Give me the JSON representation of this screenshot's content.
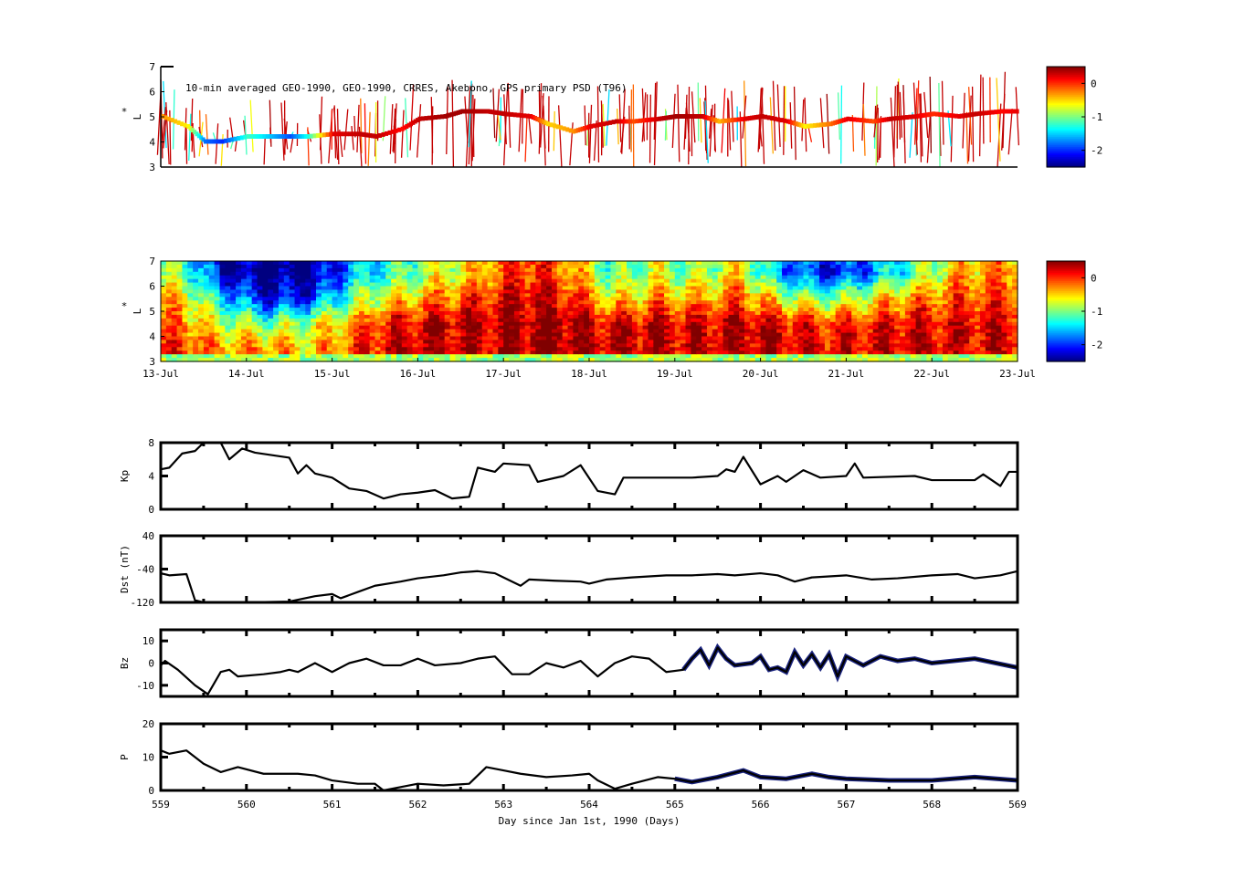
{
  "chart_data": [
    {
      "type": "scatter",
      "panel": "psd-orbit",
      "title": "10-min averaged GEO-1990, GEO-1990, CRRES, Akebono, GPS  primary PSD (T96)",
      "ylabel": "L",
      "ylabel_star": "*",
      "ylim": [
        3,
        7
      ],
      "yticks": [
        "3",
        "4",
        "5",
        "6",
        "7"
      ],
      "colorbar": {
        "range": [
          -2.5,
          0.5
        ],
        "ticks": [
          "0",
          "-1",
          "-2"
        ]
      },
      "track_x_days": [
        0,
        0.3,
        0.5,
        0.7,
        1,
        1.3,
        1.5,
        1.7,
        2,
        2.3,
        2.5,
        2.8,
        3,
        3.3,
        3.5,
        3.8,
        4,
        4.3,
        4.5,
        4.8,
        5,
        5.3,
        5.5,
        5.8,
        6,
        6.3,
        6.5,
        6.8,
        7,
        7.3,
        7.5,
        7.8,
        8,
        8.3,
        8.5,
        8.8,
        9,
        9.3,
        9.5,
        9.8,
        10
      ],
      "track_L": [
        5,
        4.6,
        4,
        4,
        4.2,
        4.2,
        4.2,
        4.2,
        4.3,
        4.3,
        4.2,
        4.5,
        4.9,
        5,
        5.2,
        5.2,
        5.1,
        5,
        4.7,
        4.4,
        4.6,
        4.8,
        4.8,
        4.9,
        5,
        5,
        4.8,
        4.9,
        5,
        4.8,
        4.6,
        4.7,
        4.9,
        4.8,
        4.9,
        5,
        5.1,
        5.0,
        5.1,
        5.2,
        5.2
      ],
      "track_value": [
        -0.3,
        -0.6,
        -1.8,
        -2.0,
        -1.2,
        -1.6,
        -1.9,
        -1.3,
        0.2,
        0.3,
        0.3,
        0.1,
        0.3,
        0.4,
        0.4,
        0.3,
        0.3,
        0.2,
        -0.5,
        -0.3,
        0.2,
        0.3,
        -0.1,
        0.3,
        0.4,
        0.3,
        -0.4,
        0.2,
        0.3,
        0.2,
        -0.6,
        -0.2,
        0.2,
        -0.1,
        0.3,
        0.2,
        0.0,
        0.2,
        0.3,
        0.1,
        0.2
      ]
    },
    {
      "type": "heatmap",
      "panel": "psd-reanalysis",
      "ylabel": "L",
      "ylabel_star": "*",
      "ylim": [
        3,
        7
      ],
      "yticks": [
        "3",
        "4",
        "5",
        "6",
        "7"
      ],
      "xticks": [
        "13-Jul",
        "14-Jul",
        "15-Jul",
        "16-Jul",
        "17-Jul",
        "18-Jul",
        "19-Jul",
        "20-Jul",
        "21-Jul",
        "22-Jul",
        "23-Jul"
      ],
      "colorbar": {
        "range": [
          -2.5,
          0.5
        ],
        "ticks": [
          "0",
          "-1",
          "-2"
        ]
      },
      "L_rows": [
        6.5,
        5.5,
        4.5,
        3.5
      ],
      "values_by_halfday": [
        [
          -1.0,
          -0.5,
          -0.2,
          0.0
        ],
        [
          -2.4,
          -1.5,
          -0.8,
          -0.3
        ],
        [
          -2.5,
          -2.2,
          -1.0,
          -0.3
        ],
        [
          -2.5,
          -2.0,
          -0.8,
          -0.5
        ],
        [
          -1.6,
          -1.0,
          -0.3,
          -0.1
        ],
        [
          -1.2,
          -0.6,
          0.2,
          0.3
        ],
        [
          -0.8,
          -0.2,
          0.3,
          0.3
        ],
        [
          -0.4,
          0.0,
          0.3,
          0.3
        ],
        [
          0.1,
          0.3,
          0.4,
          0.4
        ],
        [
          -0.2,
          0.1,
          0.4,
          0.4
        ],
        [
          -1.2,
          -0.6,
          0.2,
          0.3
        ],
        [
          -0.8,
          -0.3,
          0.3,
          0.3
        ],
        [
          -1.0,
          -0.4,
          0.2,
          0.3
        ],
        [
          -0.6,
          -0.1,
          0.3,
          0.3
        ],
        [
          -1.7,
          -0.7,
          0.2,
          0.3
        ],
        [
          -2.1,
          -1.0,
          0.0,
          0.2
        ],
        [
          -1.8,
          -0.7,
          0.1,
          0.2
        ],
        [
          -1.2,
          -0.3,
          0.2,
          0.2
        ],
        [
          -0.5,
          -0.1,
          0.2,
          0.2
        ],
        [
          -0.3,
          0.0,
          0.2,
          0.2
        ]
      ]
    },
    {
      "type": "line",
      "panel": "kp",
      "ylabel": "Kp",
      "ylim": [
        0,
        8
      ],
      "yticks": [
        "0",
        "4",
        "8"
      ],
      "x": [
        559,
        559.1,
        559.25,
        559.4,
        559.5,
        559.7,
        559.8,
        559.95,
        560.1,
        560.3,
        560.5,
        560.6,
        560.7,
        560.8,
        561,
        561.2,
        561.4,
        561.6,
        561.8,
        562,
        562.2,
        562.4,
        562.6,
        562.7,
        562.9,
        563,
        563.3,
        563.4,
        563.7,
        563.9,
        564.1,
        564.3,
        564.4,
        564.7,
        564.9,
        565.2,
        565.5,
        565.6,
        565.7,
        565.8,
        566,
        566.2,
        566.3,
        566.5,
        566.7,
        567,
        567.1,
        567.2,
        567.8,
        568,
        568.5,
        568.6,
        568.8,
        568.9,
        569
      ],
      "y": [
        4.8,
        5,
        6.7,
        7,
        8,
        8,
        6,
        7.3,
        6.8,
        6.5,
        6.2,
        4.3,
        5.3,
        4.3,
        3.8,
        2.5,
        2.2,
        1.3,
        1.8,
        2,
        2.3,
        1.3,
        1.5,
        5,
        4.5,
        5.5,
        5.3,
        3.3,
        4,
        5.3,
        2.2,
        1.8,
        3.8,
        3.8,
        3.8,
        3.8,
        4,
        4.8,
        4.5,
        6.3,
        3,
        4,
        3.3,
        4.7,
        3.8,
        4,
        5.5,
        3.8,
        4,
        3.5,
        3.5,
        4.2,
        2.8,
        4.5,
        4.5
      ]
    },
    {
      "type": "line",
      "panel": "dst",
      "ylabel": "Dst (nT)",
      "ylim": [
        -120,
        40
      ],
      "yticks": [
        "-120",
        "-40",
        "40"
      ],
      "x": [
        559,
        559.1,
        559.3,
        559.4,
        559.5,
        560,
        560.5,
        560.8,
        561,
        561.1,
        561.3,
        561.5,
        561.8,
        562,
        562.3,
        562.5,
        562.7,
        562.9,
        563,
        563.2,
        563.3,
        563.6,
        563.9,
        564,
        564.2,
        564.5,
        564.9,
        565.2,
        565.5,
        565.7,
        566,
        566.2,
        566.4,
        566.6,
        567,
        567.3,
        567.6,
        568,
        568.3,
        568.5,
        568.8,
        569
      ],
      "y": [
        -50,
        -55,
        -52,
        -115,
        -125,
        -125,
        -118,
        -105,
        -100,
        -110,
        -95,
        -80,
        -70,
        -62,
        -55,
        -48,
        -45,
        -50,
        -60,
        -80,
        -65,
        -68,
        -70,
        -75,
        -65,
        -60,
        -55,
        -55,
        -52,
        -55,
        -50,
        -55,
        -70,
        -60,
        -55,
        -65,
        -62,
        -55,
        -52,
        -62,
        -55,
        -45
      ]
    },
    {
      "type": "line",
      "panel": "bz",
      "ylabel": "Bz",
      "ylim": [
        -15,
        15
      ],
      "yticks": [
        "-10",
        "0",
        "10"
      ],
      "x": [
        559,
        559.05,
        559.2,
        559.4,
        559.55,
        559.7,
        559.8,
        559.9,
        560.2,
        560.4,
        560.5,
        560.6,
        560.8,
        561,
        561.2,
        561.4,
        561.6,
        561.8,
        562,
        562.2,
        562.5,
        562.7,
        562.9,
        563.1,
        563.3,
        563.5,
        563.7,
        563.9,
        564.1,
        564.3,
        564.5,
        564.7,
        564.9,
        565.1,
        565.2,
        565.3,
        565.4,
        565.5,
        565.6,
        565.7,
        565.9,
        566,
        566.1,
        566.2,
        566.3,
        566.4,
        566.5,
        566.6,
        566.7,
        566.8,
        566.9,
        567,
        567.2,
        567.4,
        567.6,
        567.8,
        568,
        568.5,
        569
      ],
      "y": [
        -1,
        1,
        -3,
        -10,
        -14,
        -4,
        -3,
        -6,
        -5,
        -4,
        -3,
        -4,
        0,
        -4,
        0,
        2,
        -1,
        -1,
        2,
        -1,
        0,
        2,
        3,
        -5,
        -5,
        0,
        -2,
        1,
        -6,
        0,
        3,
        2,
        -4,
        -3,
        2,
        6,
        -1,
        7,
        2,
        -1,
        0,
        3,
        -3,
        -2,
        -4,
        5,
        -1,
        4,
        -2,
        4,
        -6,
        3,
        -1,
        3,
        1,
        2,
        0,
        2,
        -2
      ],
      "secondary_from_x": 565
    },
    {
      "type": "line",
      "panel": "pressure",
      "ylabel": "P",
      "ylim": [
        0,
        20
      ],
      "yticks": [
        "0",
        "10",
        "20"
      ],
      "x": [
        559,
        559.1,
        559.3,
        559.5,
        559.7,
        559.9,
        560.2,
        560.6,
        560.8,
        561,
        561.3,
        561.5,
        561.6,
        561.8,
        562,
        562.3,
        562.6,
        562.8,
        563,
        563.2,
        563.5,
        563.8,
        564,
        564.1,
        564.3,
        564.5,
        564.8,
        565,
        565.2,
        565.5,
        565.8,
        566,
        566.3,
        566.6,
        566.8,
        567,
        567.5,
        568,
        568.5,
        569
      ],
      "y": [
        12,
        11,
        12,
        8,
        5.5,
        7,
        5,
        5,
        4.5,
        3,
        2,
        2,
        0,
        1,
        2,
        1.5,
        2,
        7,
        6,
        5,
        4,
        4.5,
        5,
        3,
        0.5,
        2,
        4,
        3.5,
        2.5,
        4,
        6,
        4,
        3.5,
        5,
        4,
        3.5,
        3,
        3,
        4,
        3
      ],
      "secondary_from_x": 565,
      "xlabel": "Day since Jan 1st, 1990 (Days)",
      "xticks": [
        "559",
        "560",
        "561",
        "562",
        "563",
        "564",
        "565",
        "566",
        "567",
        "568",
        "569"
      ]
    }
  ],
  "colors": {
    "primary_line": "#000000",
    "secondary_line": "#1a237e"
  }
}
